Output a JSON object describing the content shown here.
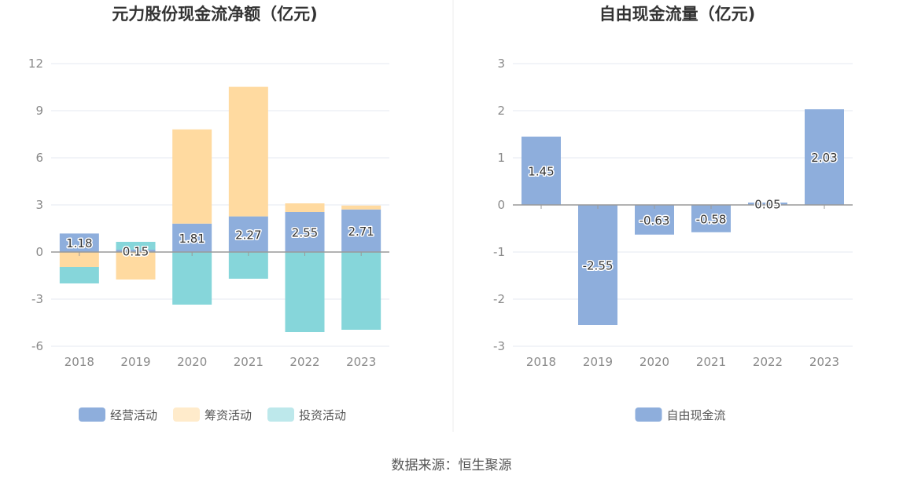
{
  "source": "数据来源：恒生聚源",
  "colors": {
    "operating": "#8eaedc",
    "financing": "#ffdaa0",
    "investing": "#86d6da",
    "free_cash": "#8eaedc",
    "grid": "#e6e8f2",
    "axis": "#999999"
  },
  "chart_data": [
    {
      "type": "bar",
      "stacked": true,
      "title": "元力股份现金流净额（亿元)",
      "categories": [
        "2018",
        "2019",
        "2020",
        "2021",
        "2022",
        "2023"
      ],
      "ylim": [
        -6,
        12
      ],
      "yticks": [
        -6,
        -3,
        0,
        3,
        6,
        9,
        12
      ],
      "grid": true,
      "legend_position": "bottom",
      "series": [
        {
          "name": "经营活动",
          "values": [
            1.18,
            0.15,
            1.81,
            2.27,
            2.55,
            2.71
          ],
          "labels": [
            "1.18",
            "0.15",
            "1.81",
            "2.27",
            "2.55",
            "2.71"
          ]
        },
        {
          "name": "筹资活动",
          "values": [
            -0.95,
            -1.75,
            6.0,
            8.25,
            0.55,
            0.25
          ]
        },
        {
          "name": "投资活动",
          "values": [
            -1.05,
            0.5,
            -3.35,
            -1.7,
            -5.1,
            -4.95
          ]
        }
      ]
    },
    {
      "type": "bar",
      "title": "自由现金流量（亿元)",
      "categories": [
        "2018",
        "2019",
        "2020",
        "2021",
        "2022",
        "2023"
      ],
      "ylim": [
        -3,
        3
      ],
      "yticks": [
        -3,
        -2,
        -1,
        0,
        1,
        2,
        3
      ],
      "grid": true,
      "legend_position": "bottom",
      "series": [
        {
          "name": "自由现金流",
          "values": [
            1.45,
            -2.55,
            -0.63,
            -0.58,
            0.05,
            2.03
          ],
          "labels": [
            "1.45",
            "-2.55",
            "-0.63",
            "-0.58",
            "0.05",
            "2.03"
          ]
        }
      ]
    }
  ]
}
